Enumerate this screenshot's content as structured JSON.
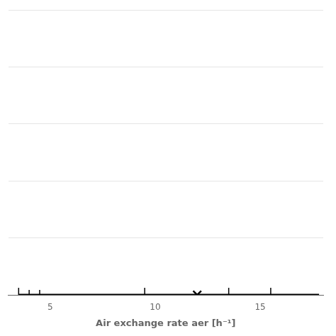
{
  "chart_data": {
    "type": "box",
    "orientation": "horizontal",
    "xlabel": "Air exchange rate aer [h⁻¹]",
    "xlim": [
      3.0,
      18.0
    ],
    "xticks": [
      5,
      10,
      15
    ],
    "ylim": [
      0.0,
      0.5
    ],
    "yticks": [
      0.0,
      0.1,
      0.2,
      0.3,
      0.4,
      0.5
    ],
    "tick_labels": "x",
    "grid": true,
    "color": "#000000",
    "whisker_low": 3.5,
    "whisker_high": 17.8,
    "box_low": 4.0,
    "median": 4.5,
    "mean": 12.0,
    "inner_ticks": [
      9.5,
      13.5,
      15.5
    ]
  }
}
